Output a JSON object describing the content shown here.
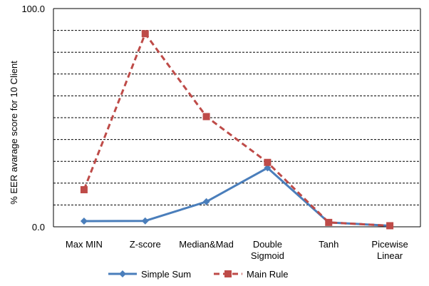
{
  "chart_data": {
    "type": "line",
    "title": "",
    "xlabel": "",
    "ylabel": "% EER avarage score for 10 Client",
    "ylim": [
      0,
      100
    ],
    "yticks": [
      "0.0",
      "100.0"
    ],
    "y_gridlines": [
      10,
      20,
      30,
      40,
      50,
      60,
      70,
      80,
      90
    ],
    "grid": "horizontal dashed",
    "legend": "bottom",
    "categories": [
      "Max MIN",
      "Z-score",
      "Median&Mad",
      "Double\nSigmoid",
      "Tanh",
      "Picewise\nLinear"
    ],
    "series": [
      {
        "name": "Simple Sum",
        "color": "#4a7ebb",
        "marker": "diamond",
        "line_style": "solid",
        "values": [
          2.6,
          2.7,
          11.5,
          27.0,
          2.0,
          0.5
        ]
      },
      {
        "name": "Main Rule",
        "color": "#be4b48",
        "marker": "square",
        "line_style": "dashed",
        "values": [
          17.0,
          88.5,
          50.5,
          29.5,
          2.0,
          0.5
        ]
      }
    ]
  }
}
